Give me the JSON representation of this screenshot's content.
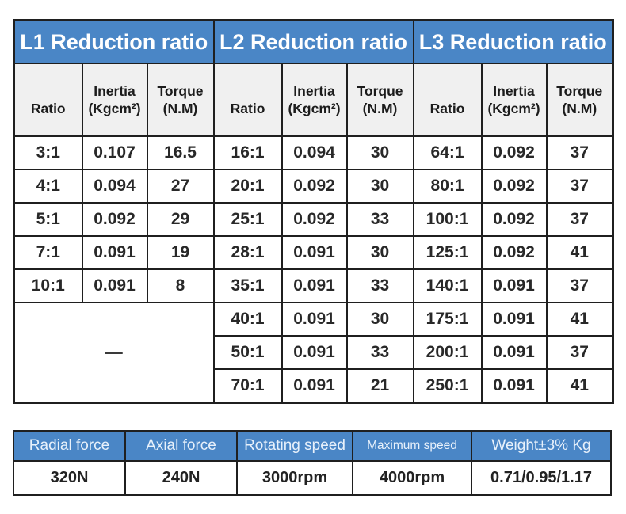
{
  "colors": {
    "header_blue": "#4a86c6",
    "column_header_bg": "#f0f0f0",
    "border": "#1f1f1f",
    "spec_header_text": "#e8f1fb"
  },
  "main_table": {
    "col_headers": {
      "ratio": "Ratio",
      "inertia": "Inertia",
      "inertia_unit": "(Kgcm²)",
      "torque": "Torque",
      "torque_unit": "(N.M)"
    },
    "sections": [
      {
        "title": "L1 Reduction ratio",
        "rows": [
          [
            "3:1",
            "0.107",
            "16.5"
          ],
          [
            "4:1",
            "0.094",
            "27"
          ],
          [
            "5:1",
            "0.092",
            "29"
          ],
          [
            "7:1",
            "0.091",
            "19"
          ],
          [
            "10:1",
            "0.091",
            "8"
          ]
        ],
        "empty_cell": "—"
      },
      {
        "title": "L2 Reduction ratio",
        "rows": [
          [
            "16:1",
            "0.094",
            "30"
          ],
          [
            "20:1",
            "0.092",
            "30"
          ],
          [
            "25:1",
            "0.092",
            "33"
          ],
          [
            "28:1",
            "0.091",
            "30"
          ],
          [
            "35:1",
            "0.091",
            "33"
          ],
          [
            "40:1",
            "0.091",
            "30"
          ],
          [
            "50:1",
            "0.091",
            "33"
          ],
          [
            "70:1",
            "0.091",
            "21"
          ]
        ]
      },
      {
        "title": "L3 Reduction ratio",
        "rows": [
          [
            "64:1",
            "0.092",
            "37"
          ],
          [
            "80:1",
            "0.092",
            "37"
          ],
          [
            "100:1",
            "0.092",
            "37"
          ],
          [
            "125:1",
            "0.092",
            "41"
          ],
          [
            "140:1",
            "0.091",
            "37"
          ],
          [
            "175:1",
            "0.091",
            "41"
          ],
          [
            "200:1",
            "0.091",
            "37"
          ],
          [
            "250:1",
            "0.091",
            "41"
          ]
        ]
      }
    ]
  },
  "spec_table": {
    "headers": [
      "Radial force",
      "Axial force",
      "Rotating speed",
      "Maximum speed",
      "Weight±3% Kg"
    ],
    "values": [
      "320N",
      "240N",
      "3000rpm",
      "4000rpm",
      "0.71/0.95/1.17"
    ]
  }
}
